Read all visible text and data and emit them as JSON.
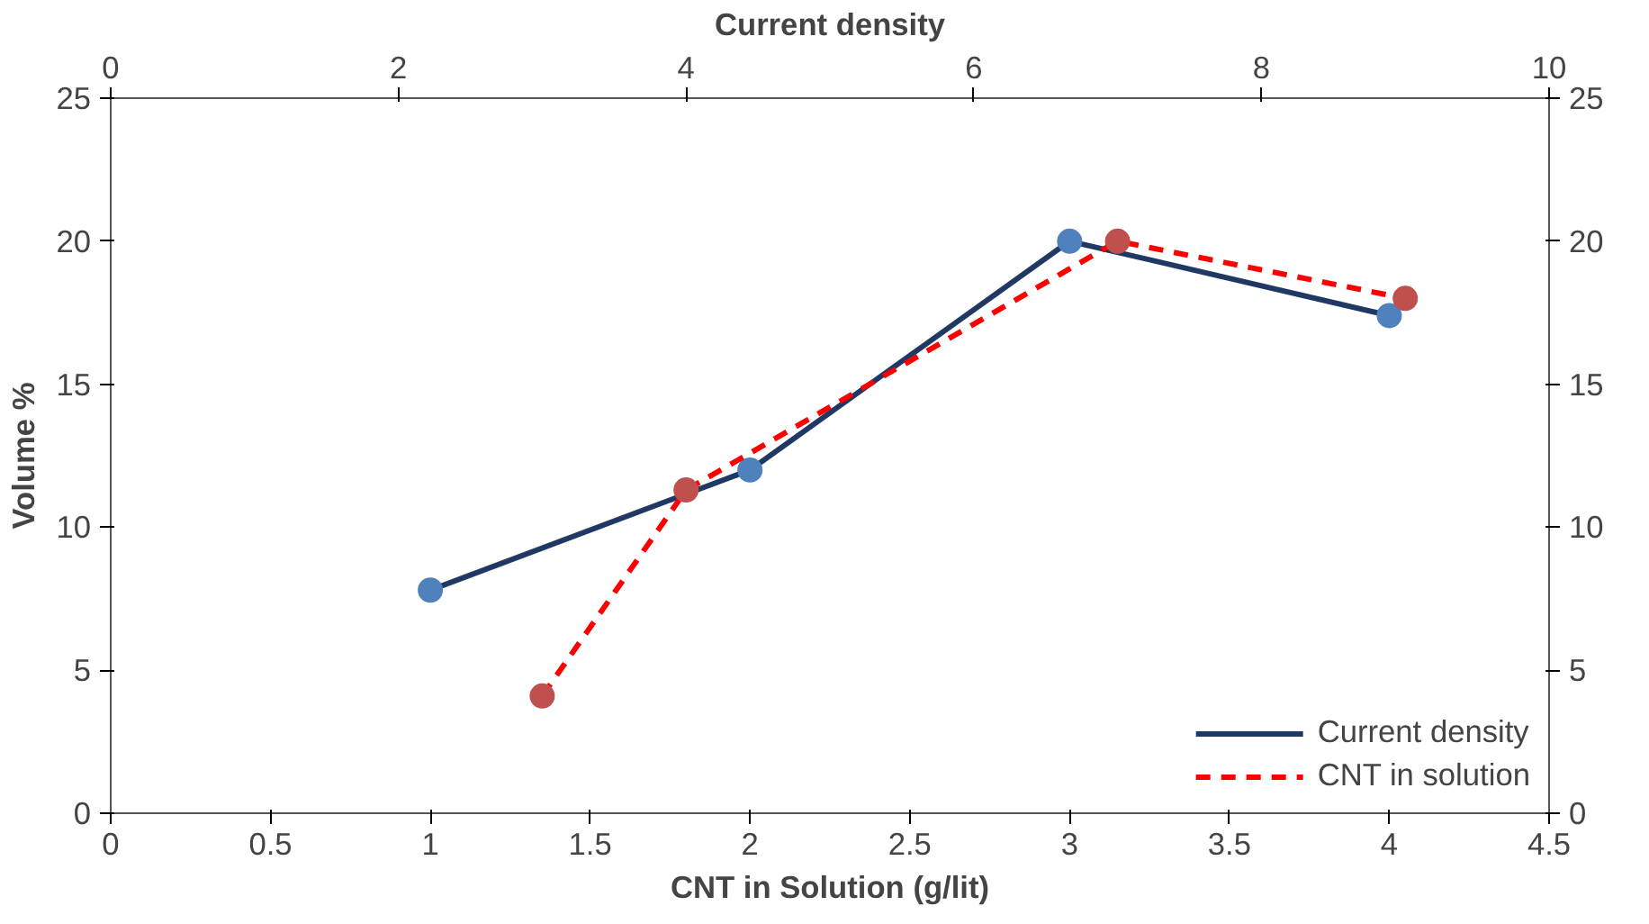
{
  "chart_data": {
    "type": "line",
    "xlabel": "CNT in Solution (g/lit)",
    "x2label": "Current density",
    "ylabel": "Volume %",
    "xlim": [
      0,
      4.5
    ],
    "xticks": [
      0,
      0.5,
      1,
      1.5,
      2,
      2.5,
      3,
      3.5,
      4,
      4.5
    ],
    "x2lim": [
      0,
      10
    ],
    "x2ticks": [
      0,
      2,
      4,
      6,
      8,
      10
    ],
    "ylim": [
      0,
      25
    ],
    "yticks": [
      0,
      5,
      10,
      15,
      20,
      25
    ],
    "y2lim": [
      0,
      25
    ],
    "y2ticks": [
      0,
      5,
      10,
      15,
      20,
      25
    ],
    "grid": false,
    "legend": "bottom right",
    "marker": "circle",
    "series": [
      {
        "name": "Current density",
        "color": "#1f3864",
        "colors": [
          "#4f81bd",
          "#4f81bd",
          "#4f81bd",
          "#4f81bd"
        ],
        "line_style": "solid",
        "x": [
          1,
          2,
          3,
          4
        ],
        "values": [
          7.8,
          12,
          20,
          17.4
        ]
      },
      {
        "name": "CNT in solution",
        "color": "#ff0000",
        "colors": [
          "#c0504d",
          "#c0504d",
          "#c0504d",
          "#c0504d"
        ],
        "line_style": "dashed",
        "axis": "x2",
        "x": [
          3,
          4,
          7,
          9
        ],
        "values": [
          4.1,
          11.3,
          20,
          18
        ]
      }
    ]
  }
}
